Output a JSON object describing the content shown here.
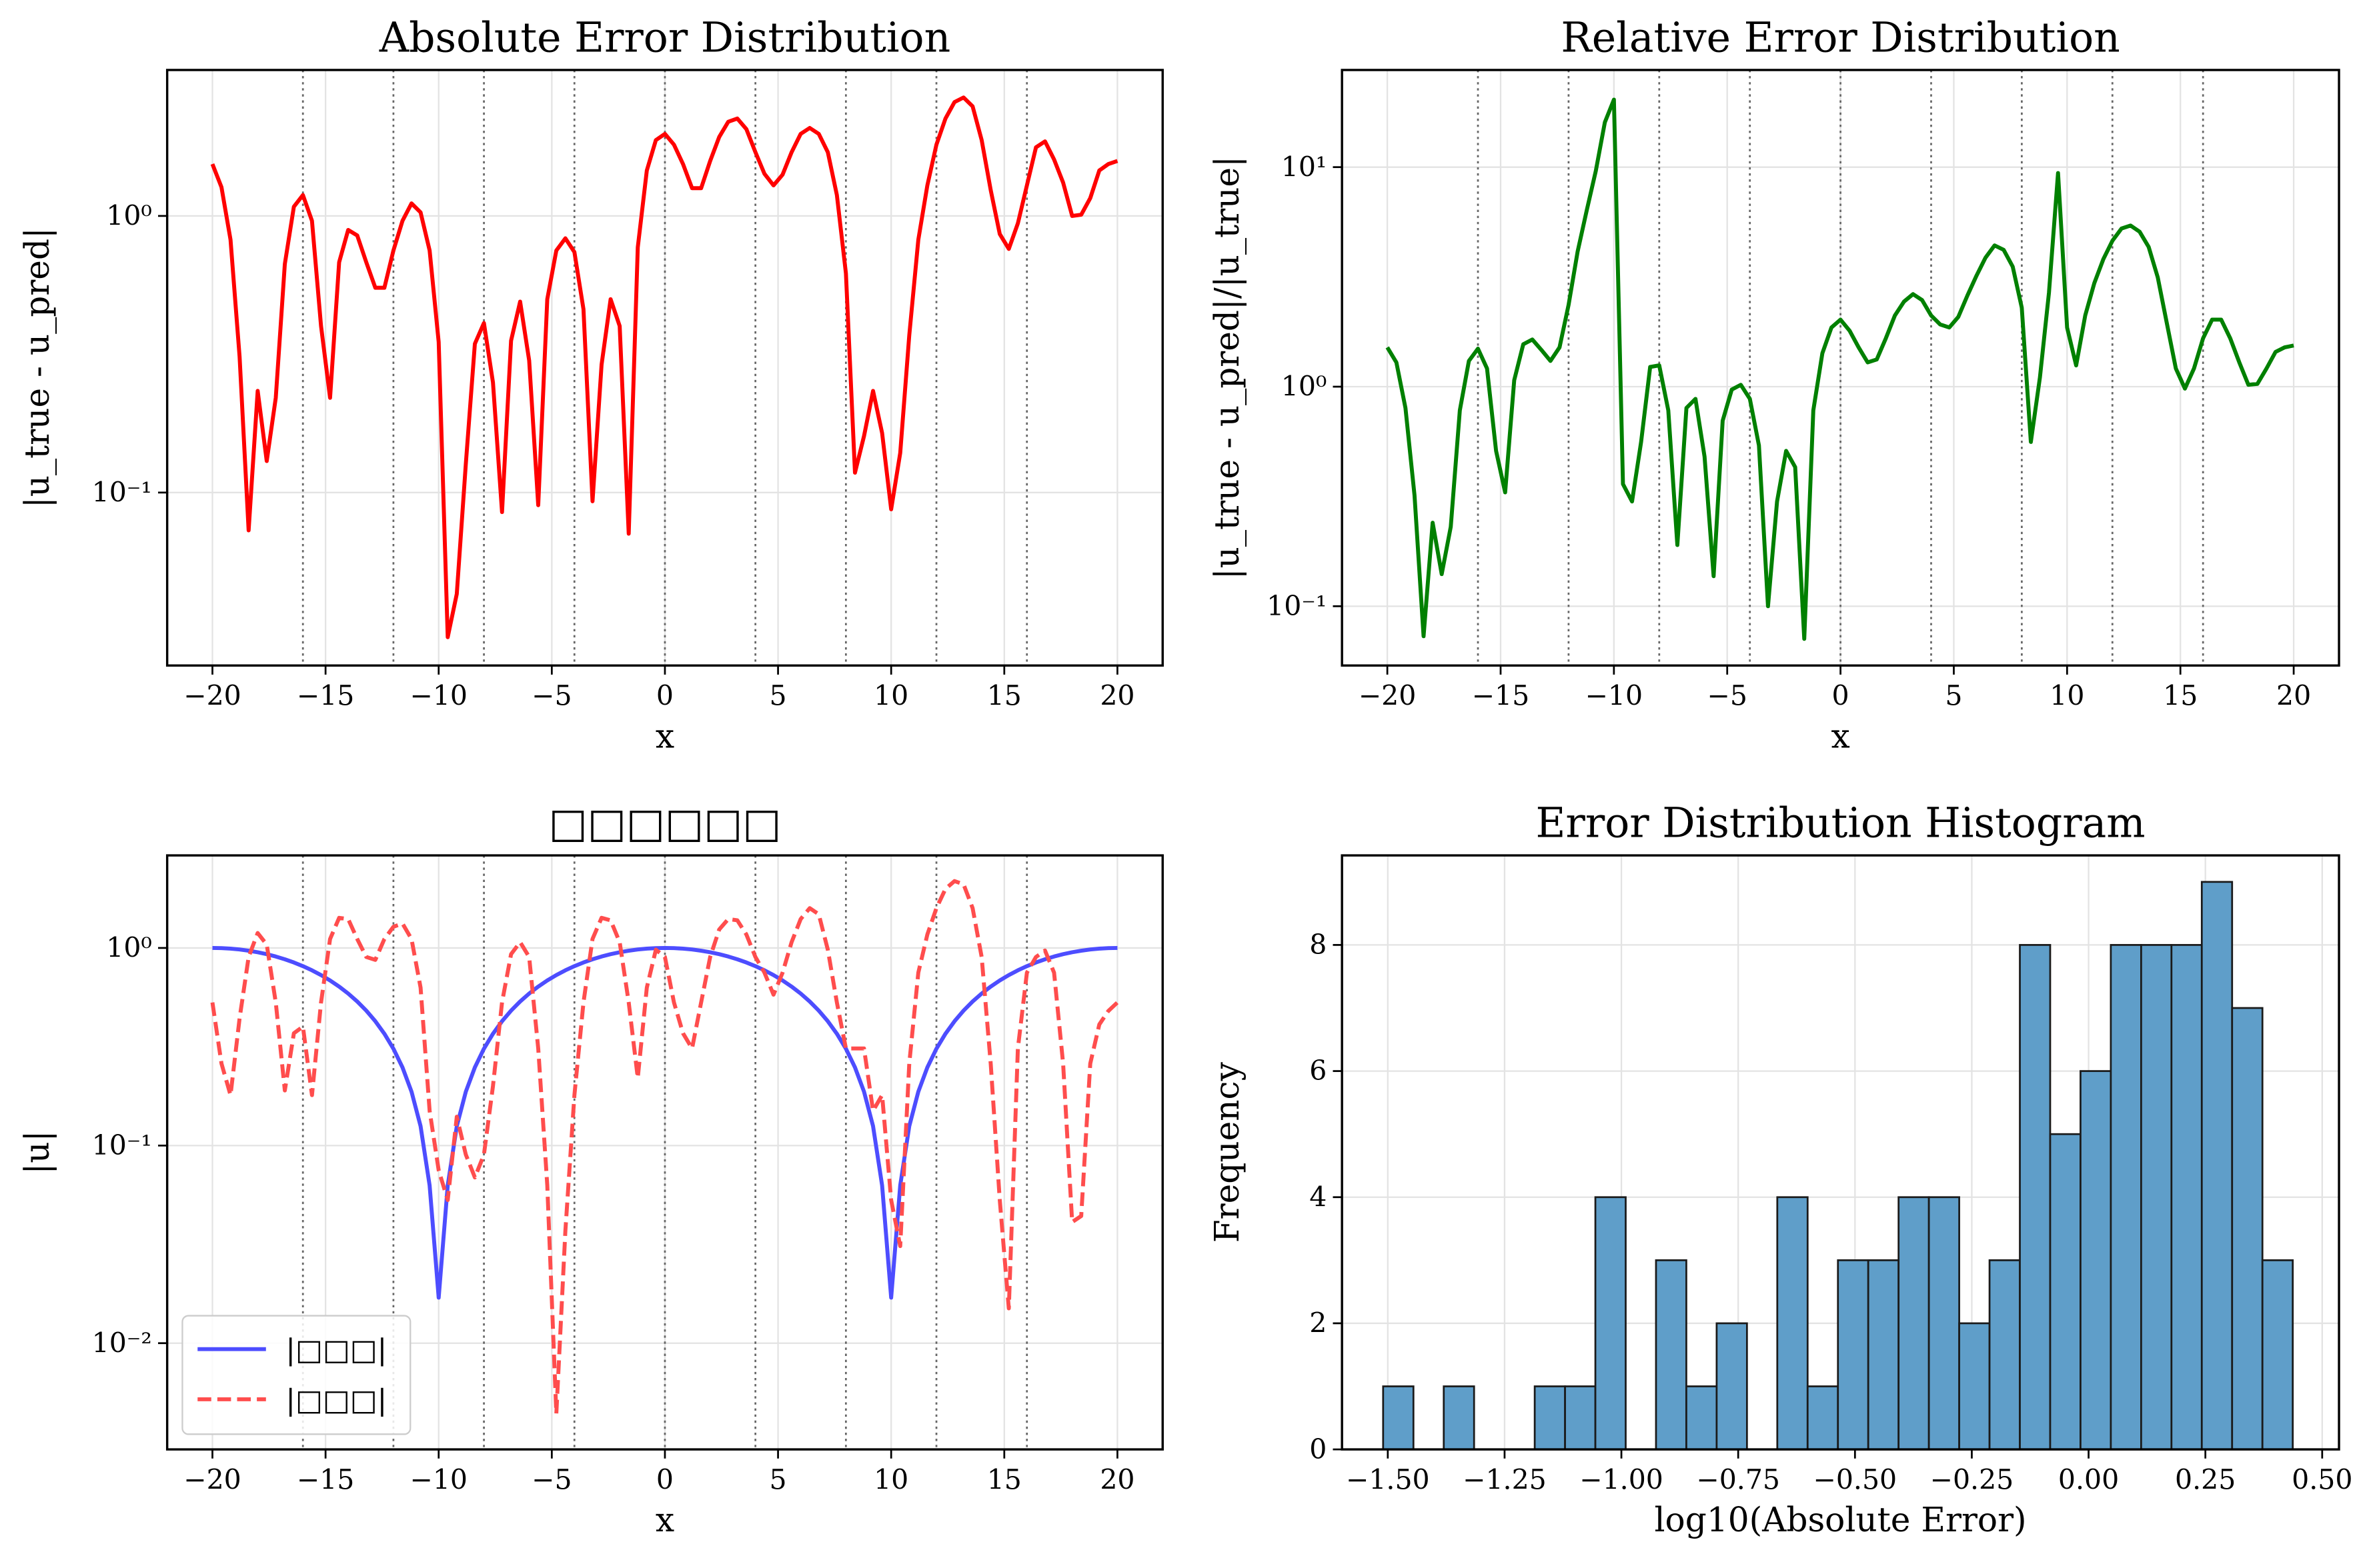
{
  "chart_data": [
    {
      "type": "line",
      "title": "Absolute Error Distribution",
      "xlabel": "x",
      "ylabel": "|u_true - u_pred|",
      "yscale": "log",
      "grid": true,
      "xlim": [
        -22,
        22
      ],
      "ylim": [
        0.0237,
        3.37
      ],
      "xticks": [
        {
          "value": -20,
          "label": "−20"
        },
        {
          "value": -15,
          "label": "−15"
        },
        {
          "value": -10,
          "label": "−10"
        },
        {
          "value": -5,
          "label": "−5"
        },
        0,
        5,
        10,
        15,
        20
      ],
      "yticks": [
        {
          "value": 0.1,
          "label": "10⁻¹"
        },
        {
          "value": 1,
          "label": "10⁰"
        }
      ],
      "vlines": [
        -16,
        -12,
        -8,
        -4,
        0,
        4,
        8,
        12,
        16
      ],
      "x": [
        -20,
        -19.6,
        -19.2,
        -18.8,
        -18.4,
        -18,
        -17.6,
        -17.2,
        -16.8,
        -16.4,
        -16,
        -15.6,
        -15.2,
        -14.8,
        -14.4,
        -14,
        -13.6,
        -13.2,
        -12.8,
        -12.4,
        -12,
        -11.6,
        -11.2,
        -10.8,
        -10.4,
        -10,
        -9.6,
        -9.2,
        -8.8,
        -8.4,
        -8,
        -7.6,
        -7.2,
        -6.8,
        -6.4,
        -6,
        -5.6,
        -5.2,
        -4.8,
        -4.4,
        -4,
        -3.6,
        -3.2,
        -2.8,
        -2.4,
        -2,
        -1.6,
        -1.2,
        -0.8,
        -0.4,
        0,
        0.4,
        0.8,
        1.2,
        1.6,
        2,
        2.4,
        2.8,
        3.2,
        3.6,
        4,
        4.4,
        4.8,
        5.2,
        5.6,
        6,
        6.4,
        6.8,
        7.2,
        7.6,
        8,
        8.4,
        8.8,
        9.2,
        9.6,
        10,
        10.4,
        10.8,
        11.2,
        11.6,
        12,
        12.4,
        12.8,
        13.2,
        13.6,
        14,
        14.4,
        14.8,
        15.2,
        15.6,
        16,
        16.4,
        16.8,
        17.2,
        17.6,
        18,
        18.4,
        18.8,
        19.2,
        19.6,
        20
      ],
      "series": [
        {
          "color": "#ff0000",
          "values": [
            1.54,
            1.27,
            0.82,
            0.31,
            0.073,
            0.233,
            0.13,
            0.22,
            0.67,
            1.08,
            1.19,
            0.96,
            0.4,
            0.22,
            0.68,
            0.89,
            0.85,
            0.68,
            0.55,
            0.55,
            0.75,
            0.96,
            1.11,
            1.03,
            0.75,
            0.35,
            0.03,
            0.043,
            0.127,
            0.345,
            0.41,
            0.25,
            0.085,
            0.354,
            0.49,
            0.3,
            0.09,
            0.5,
            0.75,
            0.83,
            0.74,
            0.46,
            0.093,
            0.29,
            0.5,
            0.4,
            0.071,
            0.77,
            1.46,
            1.88,
            1.98,
            1.81,
            1.54,
            1.26,
            1.26,
            1.58,
            1.93,
            2.19,
            2.25,
            2.06,
            1.7,
            1.42,
            1.29,
            1.41,
            1.7,
            1.98,
            2.08,
            1.98,
            1.7,
            1.19,
            0.62,
            0.118,
            0.16,
            0.233,
            0.164,
            0.087,
            0.139,
            0.37,
            0.82,
            1.29,
            1.81,
            2.25,
            2.58,
            2.68,
            2.49,
            1.88,
            1.24,
            0.86,
            0.76,
            0.94,
            1.29,
            1.77,
            1.86,
            1.6,
            1.32,
            1.0,
            1.01,
            1.16,
            1.46,
            1.54,
            1.58
          ]
        }
      ]
    },
    {
      "type": "line",
      "title": "Relative Error Distribution",
      "xlabel": "x",
      "ylabel": "|u_true - u_pred|/|u_true|",
      "yscale": "log",
      "grid": true,
      "xlim": [
        -22,
        22
      ],
      "ylim": [
        0.0537,
        27.7
      ],
      "xticks": [
        {
          "value": -20,
          "label": "−20"
        },
        {
          "value": -15,
          "label": "−15"
        },
        {
          "value": -10,
          "label": "−10"
        },
        {
          "value": -5,
          "label": "−5"
        },
        0,
        5,
        10,
        15,
        20
      ],
      "yticks": [
        {
          "value": 0.1,
          "label": "10⁻¹"
        },
        {
          "value": 1,
          "label": "10⁰"
        },
        {
          "value": 10,
          "label": "10¹"
        }
      ],
      "vlines": [
        -16,
        -12,
        -8,
        -4,
        0,
        4,
        8,
        12,
        16
      ],
      "x": [
        -20,
        -19.6,
        -19.2,
        -18.8,
        -18.4,
        -18,
        -17.6,
        -17.2,
        -16.8,
        -16.4,
        -16,
        -15.6,
        -15.2,
        -14.8,
        -14.4,
        -14,
        -13.6,
        -13.2,
        -12.8,
        -12.4,
        -12,
        -11.6,
        -11.2,
        -10.8,
        -10.4,
        -10,
        -9.6,
        -9.2,
        -8.8,
        -8.4,
        -8,
        -7.6,
        -7.2,
        -6.8,
        -6.4,
        -6,
        -5.6,
        -5.2,
        -4.8,
        -4.4,
        -4,
        -3.6,
        -3.2,
        -2.8,
        -2.4,
        -2,
        -1.6,
        -1.2,
        -0.8,
        -0.4,
        0,
        0.4,
        0.8,
        1.2,
        1.6,
        2,
        2.4,
        2.8,
        3.2,
        3.6,
        4,
        4.4,
        4.8,
        5.2,
        5.6,
        6,
        6.4,
        6.8,
        7.2,
        7.6,
        8,
        8.4,
        8.8,
        9.2,
        9.6,
        10,
        10.4,
        10.8,
        11.2,
        11.6,
        12,
        12.4,
        12.8,
        13.2,
        13.6,
        14,
        14.4,
        14.8,
        15.2,
        15.6,
        16,
        16.4,
        16.8,
        17.2,
        17.6,
        18,
        18.4,
        18.8,
        19.2,
        19.6,
        20
      ],
      "series": [
        {
          "color": "#008000",
          "values": [
            1.51,
            1.29,
            0.8,
            0.32,
            0.073,
            0.24,
            0.14,
            0.23,
            0.78,
            1.31,
            1.49,
            1.21,
            0.51,
            0.33,
            1.07,
            1.56,
            1.64,
            1.47,
            1.31,
            1.51,
            2.36,
            4.13,
            6.35,
            9.6,
            16,
            20.3,
            0.36,
            0.3,
            0.56,
            1.23,
            1.25,
            0.78,
            0.19,
            0.8,
            0.88,
            0.48,
            0.137,
            0.7,
            0.97,
            1.02,
            0.88,
            0.54,
            0.1,
            0.3,
            0.51,
            0.43,
            0.071,
            0.78,
            1.42,
            1.86,
            2.02,
            1.8,
            1.51,
            1.29,
            1.33,
            1.66,
            2.11,
            2.44,
            2.64,
            2.48,
            2.11,
            1.92,
            1.86,
            2.08,
            2.6,
            3.2,
            3.87,
            4.4,
            4.2,
            3.52,
            2.29,
            0.56,
            1.1,
            2.68,
            9.4,
            1.86,
            1.25,
            2.11,
            2.96,
            3.81,
            4.62,
            5.25,
            5.42,
            5.08,
            4.33,
            3.15,
            1.95,
            1.21,
            0.98,
            1.21,
            1.66,
            2.02,
            2.02,
            1.66,
            1.29,
            1.02,
            1.03,
            1.21,
            1.44,
            1.51,
            1.54
          ]
        }
      ]
    },
    {
      "type": "line",
      "title": "□□□□□□",
      "xlabel": "x",
      "ylabel": "|u|",
      "yscale": "log",
      "grid": true,
      "legend": "lower left",
      "xlim": [
        -22,
        22
      ],
      "ylim": [
        0.0029,
        2.94
      ],
      "xticks": [
        {
          "value": -20,
          "label": "−20"
        },
        {
          "value": -15,
          "label": "−15"
        },
        {
          "value": -10,
          "label": "−10"
        },
        {
          "value": -5,
          "label": "−5"
        },
        0,
        5,
        10,
        15,
        20
      ],
      "yticks": [
        {
          "value": 0.01,
          "label": "10⁻²"
        },
        {
          "value": 0.1,
          "label": "10⁻¹"
        },
        {
          "value": 1,
          "label": "10⁰"
        }
      ],
      "vlines": [
        -16,
        -12,
        -8,
        -4,
        0,
        4,
        8,
        12,
        16
      ],
      "x": [
        -20,
        -19.6,
        -19.2,
        -18.8,
        -18.4,
        -18,
        -17.6,
        -17.2,
        -16.8,
        -16.4,
        -16,
        -15.6,
        -15.2,
        -14.8,
        -14.4,
        -14,
        -13.6,
        -13.2,
        -12.8,
        -12.4,
        -12,
        -11.6,
        -11.2,
        -10.8,
        -10.4,
        -10,
        -9.6,
        -9.2,
        -8.8,
        -8.4,
        -8,
        -7.6,
        -7.2,
        -6.8,
        -6.4,
        -6,
        -5.6,
        -5.2,
        -4.8,
        -4.4,
        -4,
        -3.6,
        -3.2,
        -2.8,
        -2.4,
        -2,
        -1.6,
        -1.2,
        -0.8,
        -0.4,
        0,
        0.4,
        0.8,
        1.2,
        1.6,
        2,
        2.4,
        2.8,
        3.2,
        3.6,
        4,
        4.4,
        4.8,
        5.2,
        5.6,
        6,
        6.4,
        6.8,
        7.2,
        7.6,
        8,
        8.4,
        8.8,
        9.2,
        9.6,
        10,
        10.4,
        10.8,
        11.2,
        11.6,
        12,
        12.4,
        12.8,
        13.2,
        13.6,
        14,
        14.4,
        14.8,
        15.2,
        15.6,
        16,
        16.4,
        16.8,
        17.2,
        17.6,
        18,
        18.4,
        18.8,
        19.2,
        19.6,
        20
      ],
      "series": [
        {
          "name": "|□□□|",
          "color": "#4d4dff",
          "dash": "solid",
          "values": [
            1,
            0.998,
            0.9921,
            0.9823,
            0.9686,
            0.9511,
            0.9298,
            0.9048,
            0.8763,
            0.8443,
            0.809,
            0.7705,
            0.729,
            0.6845,
            0.6374,
            0.5878,
            0.5358,
            0.4818,
            0.4258,
            0.3681,
            0.309,
            0.2487,
            0.1874,
            0.1253,
            0.0628,
            0.017,
            0.0628,
            0.1253,
            0.1874,
            0.2487,
            0.309,
            0.3681,
            0.4258,
            0.4818,
            0.5358,
            0.5878,
            0.6374,
            0.6845,
            0.729,
            0.7705,
            0.809,
            0.8443,
            0.8763,
            0.9048,
            0.9298,
            0.9511,
            0.9686,
            0.9823,
            0.9921,
            0.998,
            1,
            0.998,
            0.9921,
            0.9823,
            0.9686,
            0.9511,
            0.9298,
            0.9048,
            0.8763,
            0.8443,
            0.809,
            0.7705,
            0.729,
            0.6845,
            0.6374,
            0.5878,
            0.5358,
            0.4818,
            0.4258,
            0.3681,
            0.309,
            0.2487,
            0.1874,
            0.1253,
            0.0628,
            0.017,
            0.0628,
            0.1253,
            0.1874,
            0.2487,
            0.309,
            0.3681,
            0.4258,
            0.4818,
            0.5358,
            0.5878,
            0.6374,
            0.6845,
            0.729,
            0.7705,
            0.809,
            0.8443,
            0.8763,
            0.9048,
            0.9298,
            0.9511,
            0.9686,
            0.9823,
            0.9921,
            0.998,
            1
          ]
        },
        {
          "name": "|□□□|",
          "color": "#ff4d4d",
          "dash": "dashed",
          "values": [
            0.53,
            0.26,
            0.18,
            0.44,
            0.9,
            1.19,
            1.04,
            0.53,
            0.19,
            0.37,
            0.4,
            0.18,
            0.53,
            1.11,
            1.42,
            1.4,
            1.11,
            0.9,
            0.87,
            1.11,
            1.28,
            1.33,
            1.11,
            0.63,
            0.15,
            0.075,
            0.053,
            0.14,
            0.09,
            0.069,
            0.09,
            0.2,
            0.53,
            0.93,
            1.07,
            0.9,
            0.31,
            0.063,
            0.0044,
            0.037,
            0.18,
            0.53,
            1.11,
            1.42,
            1.38,
            1.07,
            0.53,
            0.22,
            0.63,
            0.98,
            0.9,
            0.53,
            0.37,
            0.31,
            0.53,
            0.9,
            1.24,
            1.4,
            1.38,
            1.17,
            0.9,
            0.75,
            0.58,
            0.75,
            1.07,
            1.4,
            1.59,
            1.48,
            0.98,
            0.53,
            0.31,
            0.31,
            0.31,
            0.15,
            0.18,
            0.053,
            0.031,
            0.26,
            0.75,
            1.17,
            1.59,
            1.99,
            2.18,
            2.1,
            1.59,
            0.9,
            0.26,
            0.053,
            0.015,
            0.31,
            0.75,
            0.9,
            0.97,
            0.75,
            0.26,
            0.041,
            0.044,
            0.26,
            0.41,
            0.48,
            0.53
          ]
        }
      ]
    },
    {
      "type": "histogram",
      "title": "Error Distribution Histogram",
      "xlabel": "log10(Absolute Error)",
      "ylabel": "Frequency",
      "grid": true,
      "xlim": [
        -1.598,
        0.536
      ],
      "ylim": [
        0,
        9.42
      ],
      "xticks": [
        {
          "value": -1.5,
          "label": "−1.50"
        },
        {
          "value": -1.25,
          "label": "−1.25"
        },
        {
          "value": -1,
          "label": "−1.00"
        },
        {
          "value": -0.75,
          "label": "−0.75"
        },
        {
          "value": -0.5,
          "label": "−0.50"
        },
        {
          "value": -0.25,
          "label": "−0.25"
        },
        {
          "value": 0,
          "label": "0.00"
        },
        {
          "value": 0.25,
          "label": "0.25"
        },
        {
          "value": 0.5,
          "label": "0.50"
        }
      ],
      "yticks": [
        0,
        2,
        4,
        6,
        8
      ],
      "color": "#5f9ec9",
      "edgecolor": "#1a1a1a",
      "bins": [
        -1.51,
        -1.4451,
        -1.3802,
        -1.3153,
        -1.2504,
        -1.1855,
        -1.1206,
        -1.0557,
        -0.9908,
        -0.9259,
        -0.861,
        -0.7961,
        -0.7312,
        -0.6663,
        -0.6014,
        -0.5365,
        -0.4716,
        -0.4067,
        -0.3418,
        -0.2769,
        -0.212,
        -0.1471,
        -0.0822,
        -0.0173,
        0.0476,
        0.1125,
        0.1774,
        0.2423,
        0.3072,
        0.3721,
        0.437
      ],
      "counts": [
        1,
        0,
        1,
        0,
        0,
        1,
        1,
        4,
        0,
        3,
        1,
        2,
        0,
        4,
        1,
        3,
        3,
        4,
        4,
        2,
        3,
        8,
        5,
        6,
        8,
        8,
        8,
        9,
        7,
        3
      ]
    }
  ]
}
